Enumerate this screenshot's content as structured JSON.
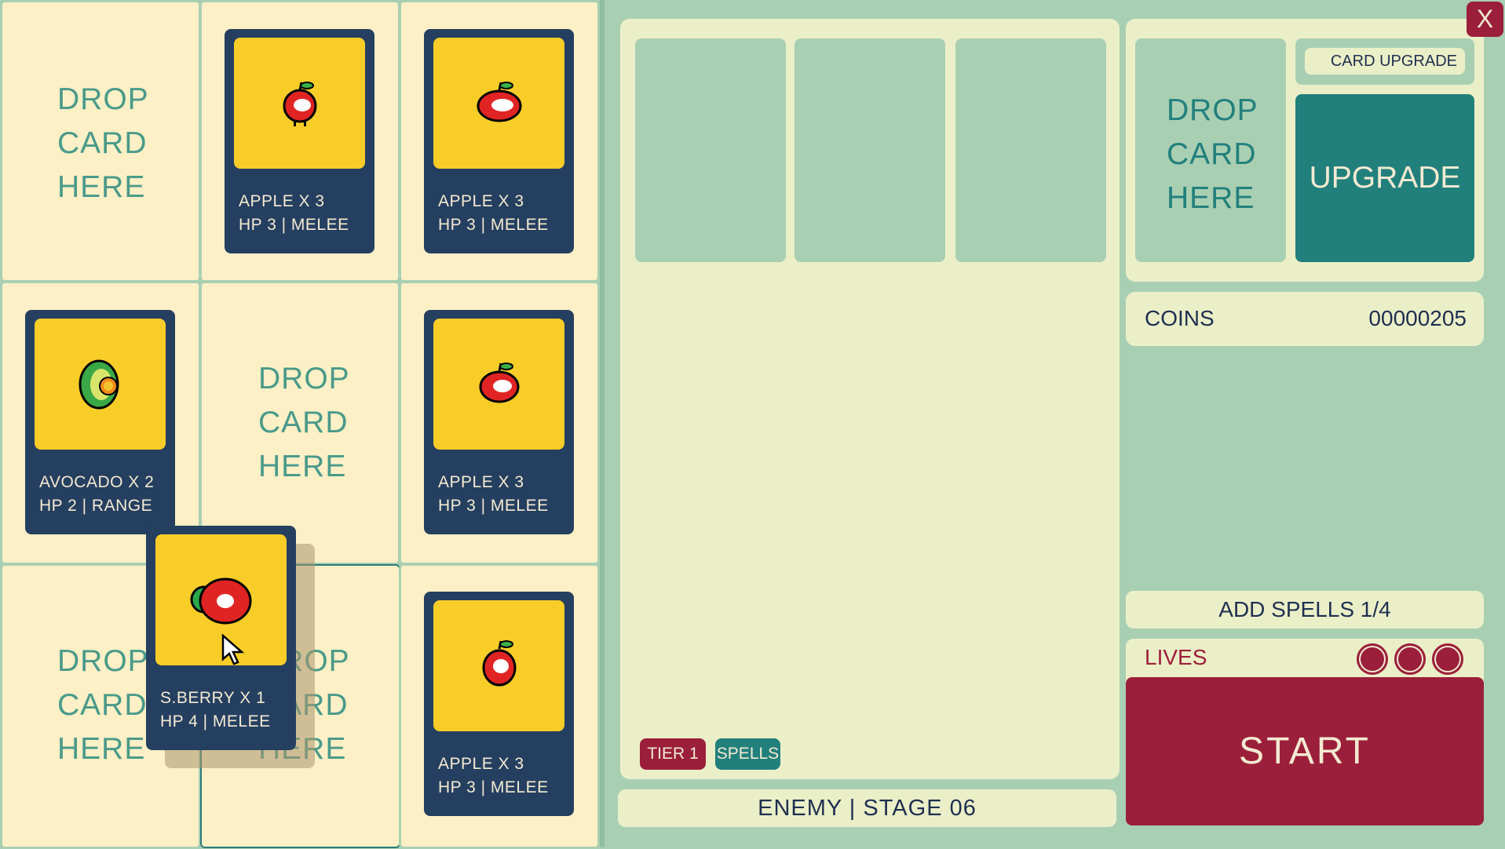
{
  "board": {
    "drop_text": [
      "DROP",
      "CARD",
      "HERE"
    ],
    "cards": [
      {
        "name": "APPLE X 3",
        "stats": "HP 3 | MELEE",
        "fruit": "apple"
      },
      {
        "name": "APPLE X 3",
        "stats": "HP 3 | MELEE",
        "fruit": "apple"
      },
      {
        "name": "AVOCADO X 2",
        "stats": "HP 2 | RANGE",
        "fruit": "avocado"
      },
      {
        "name": "APPLE X 3",
        "stats": "HP 3 | MELEE",
        "fruit": "apple"
      },
      {
        "name": "APPLE X 3",
        "stats": "HP 3 | MELEE",
        "fruit": "apple"
      }
    ],
    "dragged_card": {
      "name": "S.BERRY X 1",
      "stats": "HP 4 | MELEE",
      "fruit": "strawberry"
    }
  },
  "enemy": {
    "tier_label": "TIER 1",
    "spells_label": "SPELLS",
    "stage_label": "ENEMY | STAGE 06"
  },
  "upgrade": {
    "drop_text": [
      "DROP",
      "CARD",
      "HERE"
    ],
    "title": "CARD UPGRADE",
    "button": "UPGRADE"
  },
  "coins": {
    "label": "COINS",
    "value": "00000205"
  },
  "spells": {
    "label": "ADD SPELLS 1/4"
  },
  "lives": {
    "label": "LIVES",
    "count": 3
  },
  "start_button": "START",
  "close_button": "X",
  "colors": {
    "card": "#253f60",
    "art": "#f8cd28",
    "teal": "#22807c",
    "red": "#9b1f3a",
    "panel": "#ebefc8",
    "bg": "#a9cfb3",
    "cell": "#fdf0c6"
  }
}
